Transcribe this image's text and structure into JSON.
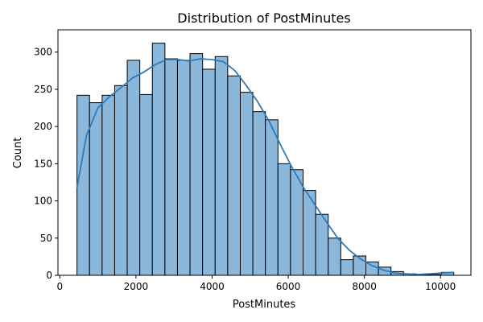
{
  "chart_data": {
    "type": "bar",
    "subtype": "histogram-with-kde",
    "title": "Distribution of PostMinutes",
    "xlabel": "PostMinutes",
    "ylabel": "Count",
    "xlim": [
      -50,
      10800
    ],
    "ylim": [
      0,
      330
    ],
    "xticks": [
      0,
      2000,
      4000,
      6000,
      8000,
      10000
    ],
    "yticks": [
      0,
      50,
      100,
      150,
      200,
      250,
      300
    ],
    "grid": false,
    "bar_color": "#8bb7da",
    "bar_edge_color": "#000000",
    "kde_color": "#2f7ab9",
    "bins": [
      {
        "x0": 450,
        "x1": 780,
        "count": 242
      },
      {
        "x0": 780,
        "x1": 1110,
        "count": 232
      },
      {
        "x0": 1110,
        "x1": 1440,
        "count": 242
      },
      {
        "x0": 1440,
        "x1": 1770,
        "count": 255
      },
      {
        "x0": 1770,
        "x1": 2100,
        "count": 289
      },
      {
        "x0": 2100,
        "x1": 2430,
        "count": 243
      },
      {
        "x0": 2430,
        "x1": 2760,
        "count": 312
      },
      {
        "x0": 2760,
        "x1": 3090,
        "count": 291
      },
      {
        "x0": 3090,
        "x1": 3420,
        "count": 289
      },
      {
        "x0": 3420,
        "x1": 3750,
        "count": 298
      },
      {
        "x0": 3750,
        "x1": 4080,
        "count": 277
      },
      {
        "x0": 4080,
        "x1": 4410,
        "count": 294
      },
      {
        "x0": 4410,
        "x1": 4740,
        "count": 268
      },
      {
        "x0": 4740,
        "x1": 5070,
        "count": 246
      },
      {
        "x0": 5070,
        "x1": 5400,
        "count": 220
      },
      {
        "x0": 5400,
        "x1": 5730,
        "count": 209
      },
      {
        "x0": 5730,
        "x1": 6060,
        "count": 150
      },
      {
        "x0": 6060,
        "x1": 6390,
        "count": 142
      },
      {
        "x0": 6390,
        "x1": 6720,
        "count": 114
      },
      {
        "x0": 6720,
        "x1": 7050,
        "count": 82
      },
      {
        "x0": 7050,
        "x1": 7380,
        "count": 50
      },
      {
        "x0": 7380,
        "x1": 7710,
        "count": 21
      },
      {
        "x0": 7710,
        "x1": 8040,
        "count": 26
      },
      {
        "x0": 8040,
        "x1": 8370,
        "count": 18
      },
      {
        "x0": 8370,
        "x1": 8700,
        "count": 11
      },
      {
        "x0": 8700,
        "x1": 9030,
        "count": 5
      },
      {
        "x0": 9030,
        "x1": 9360,
        "count": 2
      },
      {
        "x0": 9360,
        "x1": 9690,
        "count": 1
      },
      {
        "x0": 9690,
        "x1": 10020,
        "count": 1
      },
      {
        "x0": 10020,
        "x1": 10350,
        "count": 4
      }
    ],
    "kde": {
      "x": [
        450,
        700,
        1000,
        1300,
        1600,
        1900,
        2200,
        2500,
        2800,
        3100,
        3400,
        3700,
        4000,
        4300,
        4600,
        4900,
        5200,
        5500,
        5800,
        6100,
        6400,
        6700,
        7000,
        7300,
        7600,
        7900,
        8200,
        8500,
        8800,
        9100,
        9400,
        9700,
        10000,
        10350
      ],
      "y": [
        118,
        188,
        225,
        240,
        252,
        265,
        273,
        283,
        290,
        290,
        288,
        291,
        290,
        287,
        275,
        255,
        233,
        207,
        175,
        145,
        118,
        95,
        72,
        50,
        34,
        22,
        13,
        7,
        3,
        2,
        1,
        2,
        3,
        4
      ]
    }
  }
}
